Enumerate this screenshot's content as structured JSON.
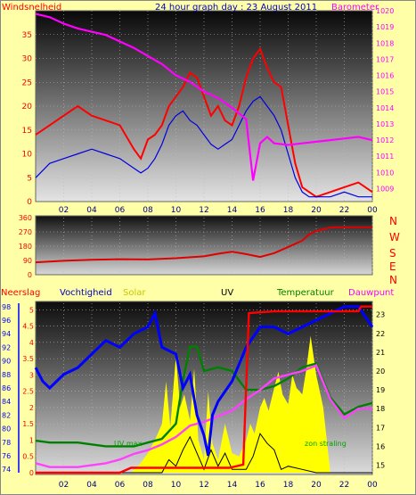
{
  "header": {
    "title": "24 hour graph day : 23 August 2011",
    "left_label": "Windsnelheid",
    "right_label": "Barometer"
  },
  "wind_dir_labels": [
    "N",
    "W",
    "S",
    "E",
    "N"
  ],
  "bottom_labels": {
    "neerslag": "Neerslag",
    "vochtigheid": "Vochtigheid",
    "solar": "Solar",
    "uv": "UV",
    "temperatuur": "Temperatuur",
    "dauwpunt": "Dauwpunt",
    "uv_max": "UV max",
    "zon_straling": "zon straling"
  },
  "colors": {
    "background": "#ffffa8",
    "wind_gust": "#ff0000",
    "wind_avg": "#0000e0",
    "barometer": "#ff00ff",
    "direction": "#e00000",
    "humidity": "#0000ff",
    "temperature": "#008000",
    "dewpoint": "#ff40ff",
    "rain": "#ff0000",
    "solar": "#ffff00",
    "uv": "#000000"
  },
  "chart_data": [
    {
      "type": "line",
      "name": "wind-barometer",
      "title": "24 hour graph day : 23 August 2011",
      "x_ticks": [
        "02",
        "04",
        "06",
        "08",
        "10",
        "12",
        "14",
        "16",
        "18",
        "20",
        "22",
        "00"
      ],
      "xlim": [
        0,
        24
      ],
      "left_axis": {
        "label": "Windsnelheid",
        "ylim": [
          0,
          40
        ],
        "ticks": [
          0,
          5,
          10,
          15,
          20,
          25,
          30,
          35
        ]
      },
      "right_axis": {
        "label": "Barometer",
        "ylim": [
          1008.2,
          1020
        ],
        "ticks": [
          1009,
          1010,
          1011,
          1012,
          1013,
          1014,
          1015,
          1016,
          1017,
          1018,
          1019,
          1020
        ]
      },
      "series": [
        {
          "axis": "left",
          "color": "#ff0000",
          "x": [
            0,
            1,
            2,
            3,
            4,
            5,
            6,
            7,
            7.5,
            8,
            8.5,
            9,
            9.5,
            10,
            10.5,
            11,
            11.5,
            12,
            12.5,
            13,
            13.5,
            14,
            14.5,
            15,
            15.5,
            16,
            16.5,
            17,
            17.5,
            18,
            18.5,
            19,
            19.5,
            20,
            21,
            22,
            23,
            24
          ],
          "values": [
            14,
            16,
            18,
            20,
            18,
            17,
            16,
            11,
            9,
            13,
            14,
            16,
            20,
            22,
            24,
            27,
            26,
            22,
            18,
            20,
            17,
            16,
            20,
            26,
            30,
            32,
            28,
            25,
            24,
            16,
            8,
            3,
            2,
            1,
            2,
            3,
            4,
            2
          ]
        },
        {
          "axis": "left",
          "color": "#0000e0",
          "x": [
            0,
            1,
            2,
            3,
            4,
            5,
            6,
            7,
            7.5,
            8,
            8.5,
            9,
            9.5,
            10,
            10.5,
            11,
            11.5,
            12,
            12.5,
            13,
            13.5,
            14,
            14.5,
            15,
            15.5,
            16,
            16.5,
            17,
            17.5,
            18,
            18.5,
            19,
            19.5,
            20,
            21,
            22,
            23,
            24
          ],
          "values": [
            5,
            8,
            9,
            10,
            11,
            10,
            9,
            7,
            6,
            7,
            9,
            12,
            16,
            18,
            19,
            17,
            16,
            14,
            12,
            11,
            12,
            13,
            16,
            19,
            21,
            22,
            20,
            18,
            15,
            10,
            5,
            2,
            1,
            1,
            1,
            2,
            1,
            1
          ]
        },
        {
          "axis": "right",
          "color": "#ff00ff",
          "x": [
            0,
            1,
            2,
            3,
            4,
            5,
            6,
            7,
            8,
            9,
            10,
            11,
            12,
            13,
            14,
            15,
            15.5,
            16,
            16.5,
            17,
            18,
            19,
            20,
            21,
            22,
            23,
            24
          ],
          "values": [
            1019.8,
            1019.6,
            1019.2,
            1018.9,
            1018.7,
            1018.5,
            1018.1,
            1017.7,
            1017.2,
            1016.7,
            1016.0,
            1015.6,
            1015.0,
            1014.6,
            1014.0,
            1013.3,
            1009.5,
            1011.8,
            1012.2,
            1011.8,
            1011.7,
            1011.8,
            1011.9,
            1012.0,
            1012.1,
            1012.2,
            1012.0
          ]
        }
      ]
    },
    {
      "type": "line",
      "name": "wind-direction",
      "x_ticks": [
        "02",
        "04",
        "06",
        "08",
        "10",
        "12",
        "14",
        "16",
        "18",
        "20",
        "22",
        "00"
      ],
      "xlim": [
        0,
        24
      ],
      "ylim": [
        0,
        360
      ],
      "y_ticks": [
        0,
        90,
        180,
        270,
        360
      ],
      "series": [
        {
          "color": "#e00000",
          "x": [
            0,
            2,
            4,
            6,
            8,
            10,
            12,
            13,
            14,
            15,
            16,
            17,
            18,
            19,
            19.5,
            20,
            21,
            22,
            24
          ],
          "values": [
            78,
            88,
            94,
            98,
            96,
            104,
            116,
            132,
            145,
            130,
            112,
            136,
            175,
            215,
            255,
            275,
            298,
            300,
            300
          ]
        }
      ]
    },
    {
      "type": "line",
      "name": "rain-humidity-temperature",
      "x_ticks": [
        "02",
        "04",
        "06",
        "08",
        "10",
        "12",
        "14",
        "16",
        "18",
        "20",
        "22",
        "00"
      ],
      "xlim": [
        0,
        24
      ],
      "axes": {
        "rain": {
          "label": "Neerslag",
          "ylim": [
            0,
            5.2
          ],
          "ticks": [
            0,
            0.5,
            1,
            1.5,
            2,
            2.5,
            3,
            3.5,
            4,
            4.5,
            5
          ]
        },
        "humidity": {
          "label": "Vochtigheid",
          "ylim": [
            73.5,
            98.5
          ],
          "ticks": [
            74,
            76,
            78,
            80,
            82,
            84,
            86,
            88,
            90,
            92,
            94,
            96,
            98
          ]
        },
        "temperature": {
          "label": "Temperatuur",
          "ylim": [
            14.6,
            23.6
          ],
          "ticks": [
            15,
            16,
            17,
            18,
            19,
            20,
            21,
            22,
            23
          ]
        }
      },
      "annotations": [
        "UV max",
        "zon straling"
      ],
      "series": [
        {
          "axis": "humidity",
          "color": "#0000ff",
          "x": [
            0,
            0.5,
            1,
            2,
            3,
            4,
            5,
            6,
            7,
            8,
            8.5,
            9,
            10,
            10.5,
            11,
            11.5,
            12,
            12.3,
            12.6,
            13,
            14,
            15,
            16,
            17,
            18,
            19,
            20,
            21,
            22,
            23,
            24
          ],
          "values": [
            89,
            87,
            86,
            88,
            89,
            91,
            93,
            92,
            94,
            95,
            97,
            92,
            91,
            86,
            88,
            82,
            79,
            76,
            82,
            84,
            87,
            92,
            95,
            95,
            94,
            95,
            96,
            97,
            98,
            98,
            95
          ]
        },
        {
          "axis": "temperature",
          "color": "#008000",
          "x": [
            0,
            1,
            2,
            3,
            4,
            5,
            6,
            7,
            8,
            9,
            10,
            10.5,
            11,
            11.5,
            12,
            13,
            14,
            15,
            16,
            17,
            18,
            19,
            20,
            21,
            22,
            23,
            24
          ],
          "values": [
            16.3,
            16.2,
            16.2,
            16.2,
            16.1,
            16.0,
            16.0,
            16.0,
            16.2,
            16.4,
            17.2,
            19.5,
            21.3,
            21.3,
            20.0,
            20.2,
            20.0,
            19.0,
            19.0,
            19.2,
            19.6,
            20.2,
            20.4,
            18.6,
            17.7,
            18.1,
            18.3
          ]
        },
        {
          "axis": "temperature",
          "color": "#ff40ff",
          "x": [
            0,
            1,
            2,
            3,
            4,
            5,
            6,
            7,
            8,
            9,
            10,
            11,
            12,
            13,
            14,
            15,
            16,
            17,
            18,
            19,
            20,
            21,
            22,
            23,
            24
          ],
          "values": [
            15.1,
            14.9,
            14.9,
            14.9,
            15.0,
            15.1,
            15.3,
            15.6,
            15.8,
            16.1,
            16.5,
            17.1,
            17.3,
            17.6,
            17.9,
            18.5,
            19.0,
            19.6,
            19.8,
            20.0,
            20.3,
            18.5,
            17.5,
            18.0,
            18.0
          ]
        },
        {
          "axis": "rain",
          "color": "#ff0000",
          "x": [
            0,
            6,
            6.8,
            13.8,
            14.8,
            15.2,
            17,
            20,
            22,
            23,
            23.2,
            24
          ],
          "values": [
            0,
            0,
            0.15,
            0.15,
            0.25,
            4.9,
            4.95,
            4.95,
            4.95,
            4.95,
            5.1,
            5.1
          ]
        },
        {
          "axis": "rain",
          "color": "#000000",
          "x": [
            0,
            9,
            9.5,
            10,
            10.5,
            11,
            11.5,
            12,
            12.5,
            13,
            13.5,
            14,
            15,
            15.5,
            16,
            16.5,
            17,
            17.5,
            18,
            19,
            20,
            24
          ],
          "values": [
            0,
            0,
            0.4,
            0.2,
            0.7,
            1.1,
            0.6,
            0.1,
            0.7,
            0.2,
            0.6,
            0.1,
            0.1,
            0.5,
            1.2,
            0.9,
            0.7,
            0.1,
            0.2,
            0.1,
            0,
            0
          ]
        },
        {
          "axis": "rain",
          "color": "#ffff00",
          "x": [
            0,
            6.8,
            7.5,
            8,
            8.5,
            9,
            9.3,
            9.6,
            10,
            10.3,
            10.6,
            11,
            11.3,
            11.6,
            12,
            12.3,
            12.6,
            13,
            13.5,
            14,
            14.5,
            15,
            15.3,
            15.6,
            16,
            16.3,
            16.6,
            17,
            17.3,
            17.6,
            18,
            18.3,
            18.6,
            19,
            19.3,
            19.6,
            20,
            20.5,
            21,
            24
          ],
          "values": [
            0,
            0,
            0.3,
            0.6,
            1.0,
            1.5,
            2.8,
            1.4,
            3.6,
            2.0,
            2.4,
            1.6,
            3.2,
            1.0,
            0.4,
            2.5,
            0.9,
            0.4,
            1.5,
            0.6,
            0.5,
            1.0,
            1.5,
            1.2,
            2.0,
            2.3,
            1.9,
            2.6,
            3.1,
            2.4,
            2.1,
            3.0,
            2.6,
            2.4,
            3.2,
            4.2,
            3.0,
            2.0,
            0,
            0
          ]
        }
      ]
    }
  ]
}
